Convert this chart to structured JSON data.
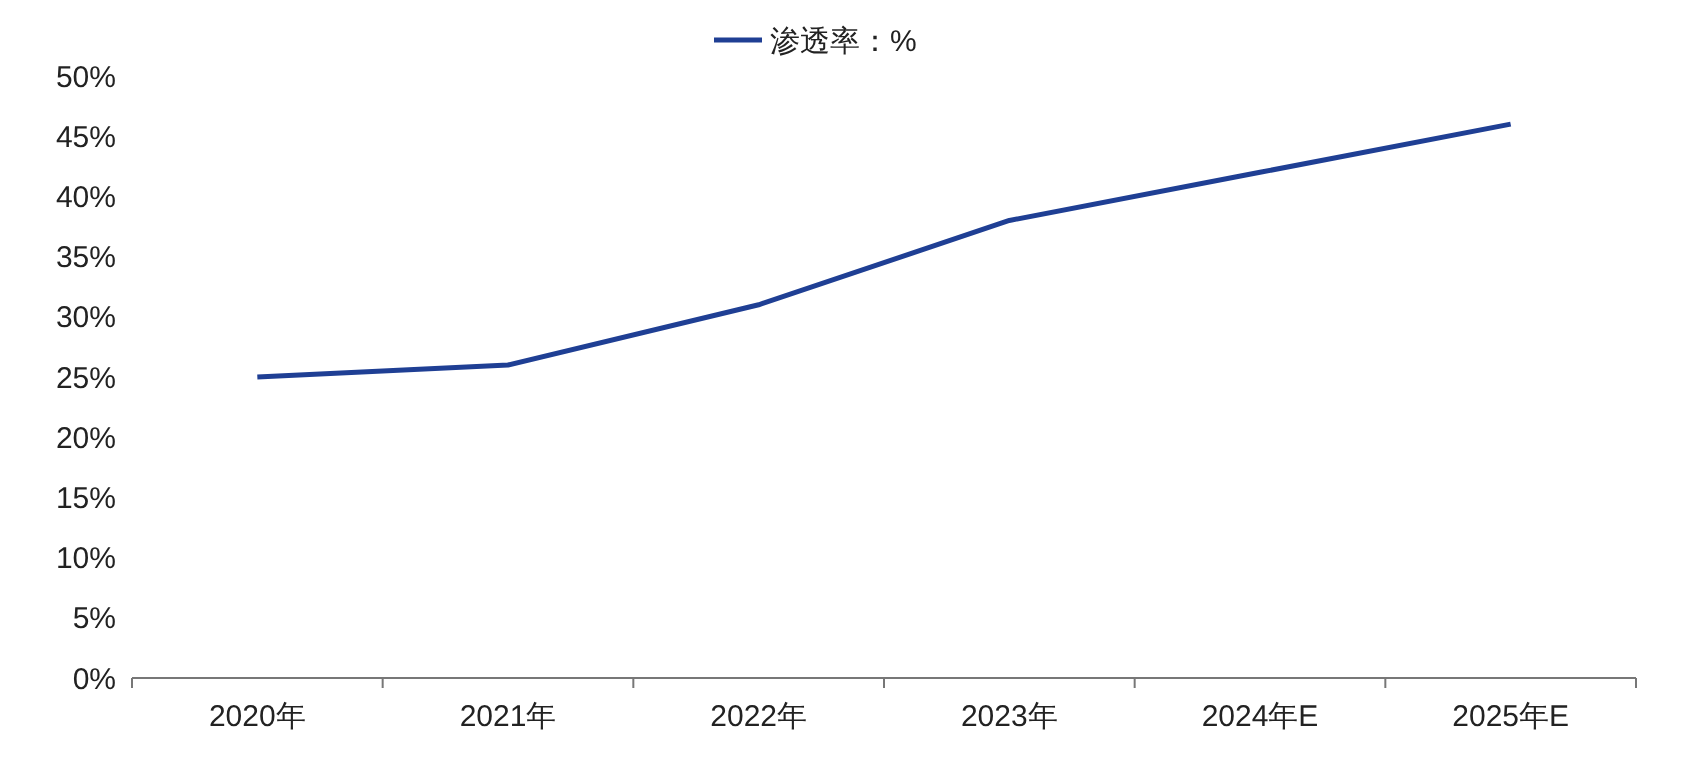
{
  "chart_data": {
    "type": "line",
    "categories": [
      "2020年",
      "2021年",
      "2022年",
      "2023年",
      "2024年E",
      "2025年E"
    ],
    "series": [
      {
        "name": "渗透率：%",
        "color": "#1f3f94",
        "values": [
          25,
          26,
          31,
          38,
          42,
          46
        ]
      }
    ],
    "ylim": [
      0,
      50
    ],
    "yticks": [
      {
        "value": 0,
        "label": "0%"
      },
      {
        "value": 5,
        "label": "5%"
      },
      {
        "value": 10,
        "label": "10%"
      },
      {
        "value": 15,
        "label": "15%"
      },
      {
        "value": 20,
        "label": "20%"
      },
      {
        "value": 25,
        "label": "25%"
      },
      {
        "value": 30,
        "label": "30%"
      },
      {
        "value": 35,
        "label": "35%"
      },
      {
        "value": 40,
        "label": "40%"
      },
      {
        "value": 45,
        "label": "45%"
      },
      {
        "value": 50,
        "label": "50%"
      }
    ],
    "grid": false,
    "legend": "top",
    "marker": "none"
  }
}
